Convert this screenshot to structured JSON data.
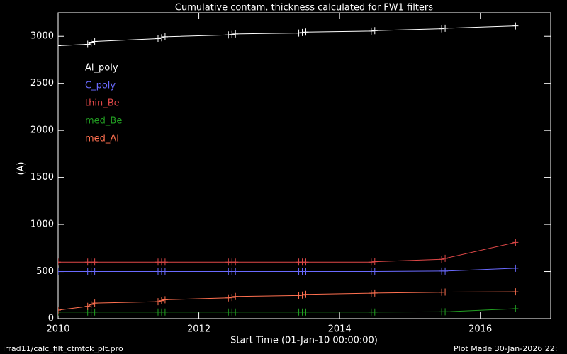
{
  "chart_data": {
    "type": "line",
    "title": "Cumulative contam. thickness calculated for FW1 filters",
    "x_label": "Start Time (01-Jan-10 00:00:00)",
    "y_label": "(A)",
    "x": [
      2010.0,
      2010.42,
      2010.47,
      2010.52,
      2011.42,
      2011.47,
      2011.52,
      2012.42,
      2012.47,
      2012.52,
      2013.42,
      2013.47,
      2013.52,
      2014.45,
      2014.5,
      2015.45,
      2015.5,
      2016.5
    ],
    "series": [
      {
        "name": "Al_poly",
        "color": "#ffffff",
        "values": [
          2900,
          2915,
          2930,
          2945,
          2975,
          2985,
          2995,
          3015,
          3020,
          3025,
          3035,
          3040,
          3045,
          3055,
          3060,
          3080,
          3085,
          3110
        ]
      },
      {
        "name": "C_poly",
        "color": "#6a6aff",
        "values": [
          500,
          500,
          500,
          500,
          500,
          500,
          500,
          500,
          500,
          500,
          500,
          500,
          500,
          500,
          500,
          505,
          505,
          535
        ]
      },
      {
        "name": "thin_Be",
        "color": "#e04848",
        "values": [
          600,
          600,
          600,
          600,
          600,
          600,
          600,
          600,
          600,
          600,
          600,
          600,
          600,
          600,
          605,
          630,
          640,
          810
        ]
      },
      {
        "name": "med_Be",
        "color": "#22a022",
        "values": [
          70,
          70,
          70,
          70,
          70,
          70,
          70,
          70,
          70,
          70,
          70,
          70,
          70,
          70,
          70,
          72,
          72,
          105
        ]
      },
      {
        "name": "med_Al",
        "color": "#ff7050",
        "values": [
          90,
          130,
          150,
          165,
          180,
          190,
          200,
          220,
          225,
          235,
          245,
          250,
          258,
          270,
          272,
          280,
          282,
          285
        ]
      }
    ],
    "xlim": [
      2010,
      2017
    ],
    "xticks": [
      2010,
      2012,
      2014,
      2016
    ],
    "ylim": [
      0,
      3250
    ],
    "yticks": [
      0,
      500,
      1000,
      1500,
      2000,
      2500,
      3000
    ],
    "footer_left": "irrad11/calc_filt_ctmtck_plt.pro",
    "footer_right": "Plot Made 30-Jan-2026 22:"
  }
}
